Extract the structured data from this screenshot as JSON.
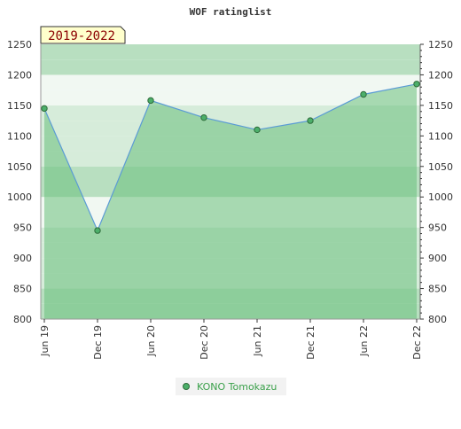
{
  "chart_data": {
    "type": "area",
    "title": "WOF ratinglist",
    "period_label": "2019-2022",
    "xlabel": "",
    "ylabel": "",
    "categories": [
      "Jun 19",
      "Dec 19",
      "Jun 20",
      "Dec 20",
      "Jun 21",
      "Dec 21",
      "Jun 22",
      "Dec 22"
    ],
    "series": [
      {
        "name": "KONO Tomokazu",
        "values": [
          1145,
          945,
          1158,
          1130,
          1110,
          1125,
          1168,
          1185
        ]
      }
    ],
    "ylim": [
      800,
      1250
    ],
    "yticks": [
      800,
      850,
      900,
      950,
      1000,
      1050,
      1100,
      1150,
      1200,
      1250
    ],
    "y_axis_both_sides": true,
    "grid": "horizontal bands",
    "legend_position": "bottom-center",
    "colors": {
      "line": "#5b9bd5",
      "fill": "#6abf7b",
      "marker_fill": "#4caf6a",
      "marker_stroke": "#2e6b3a",
      "band_light": "#f1f8f2",
      "band_mid": "#d6ecda",
      "band_dark": "#b8dfc0",
      "badge_bg": "#ffffcc",
      "badge_text": "#8b0000",
      "legend_text": "#3aa04a"
    }
  }
}
